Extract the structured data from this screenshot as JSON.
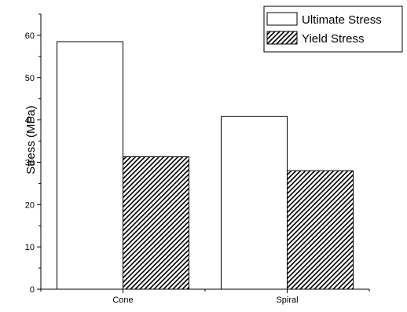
{
  "chart_data": {
    "type": "bar",
    "categories": [
      "Cone",
      "Spiral"
    ],
    "series": [
      {
        "name": "Ultimate Stress",
        "values": [
          58.5,
          40.8
        ],
        "pattern": "none",
        "fill": "#ffffff"
      },
      {
        "name": "Yield Stress",
        "values": [
          31.3,
          28.0
        ],
        "pattern": "hatched",
        "fill": "#ffffff"
      }
    ],
    "xlabel": "",
    "ylabel": "Stress (MPa)",
    "ylim": [
      0,
      65
    ],
    "yticks": [
      0,
      10,
      20,
      30,
      40,
      50,
      60
    ],
    "grid": false,
    "legend_position": "top-right",
    "colors": {
      "stroke": "#000000",
      "background": "#ffffff"
    }
  }
}
